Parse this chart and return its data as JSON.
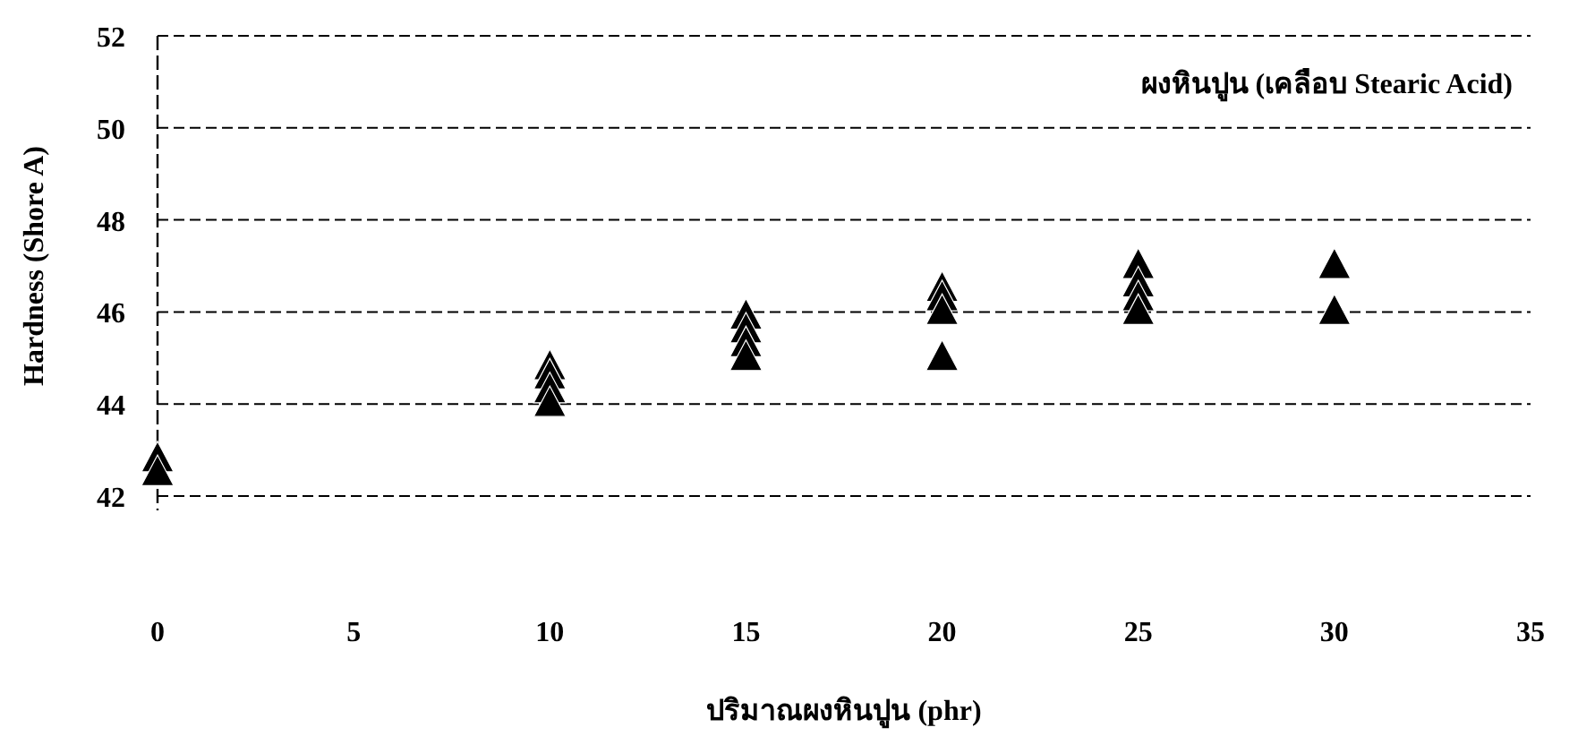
{
  "chart_data": {
    "type": "scatter",
    "title": "ผงหินปูน (เคลือบ Stearic Acid)",
    "xlabel": "ปริมาณผงหินปูน (phr)",
    "ylabel": "Hardness (Shore A)",
    "series": [
      {
        "color": "#000000",
        "x": [
          0,
          0,
          10,
          10,
          10,
          10,
          15,
          15,
          15,
          15,
          20,
          20,
          20,
          20,
          25,
          25,
          25,
          25,
          30,
          30
        ],
        "values": [
          42.5,
          42.8,
          44.0,
          44.3,
          44.6,
          44.8,
          45.0,
          45.3,
          45.6,
          45.9,
          45.0,
          46.0,
          46.3,
          46.5,
          46.0,
          46.3,
          46.6,
          47.0,
          46.0,
          47.0
        ]
      }
    ],
    "xlim": [
      0,
      35
    ],
    "xticks": [
      0,
      5,
      10,
      15,
      20,
      25,
      30,
      35
    ],
    "ylim": [
      42,
      52
    ],
    "yticks": [
      42,
      44,
      46,
      48,
      50,
      52
    ],
    "grid": "y",
    "marker": "triangle"
  }
}
